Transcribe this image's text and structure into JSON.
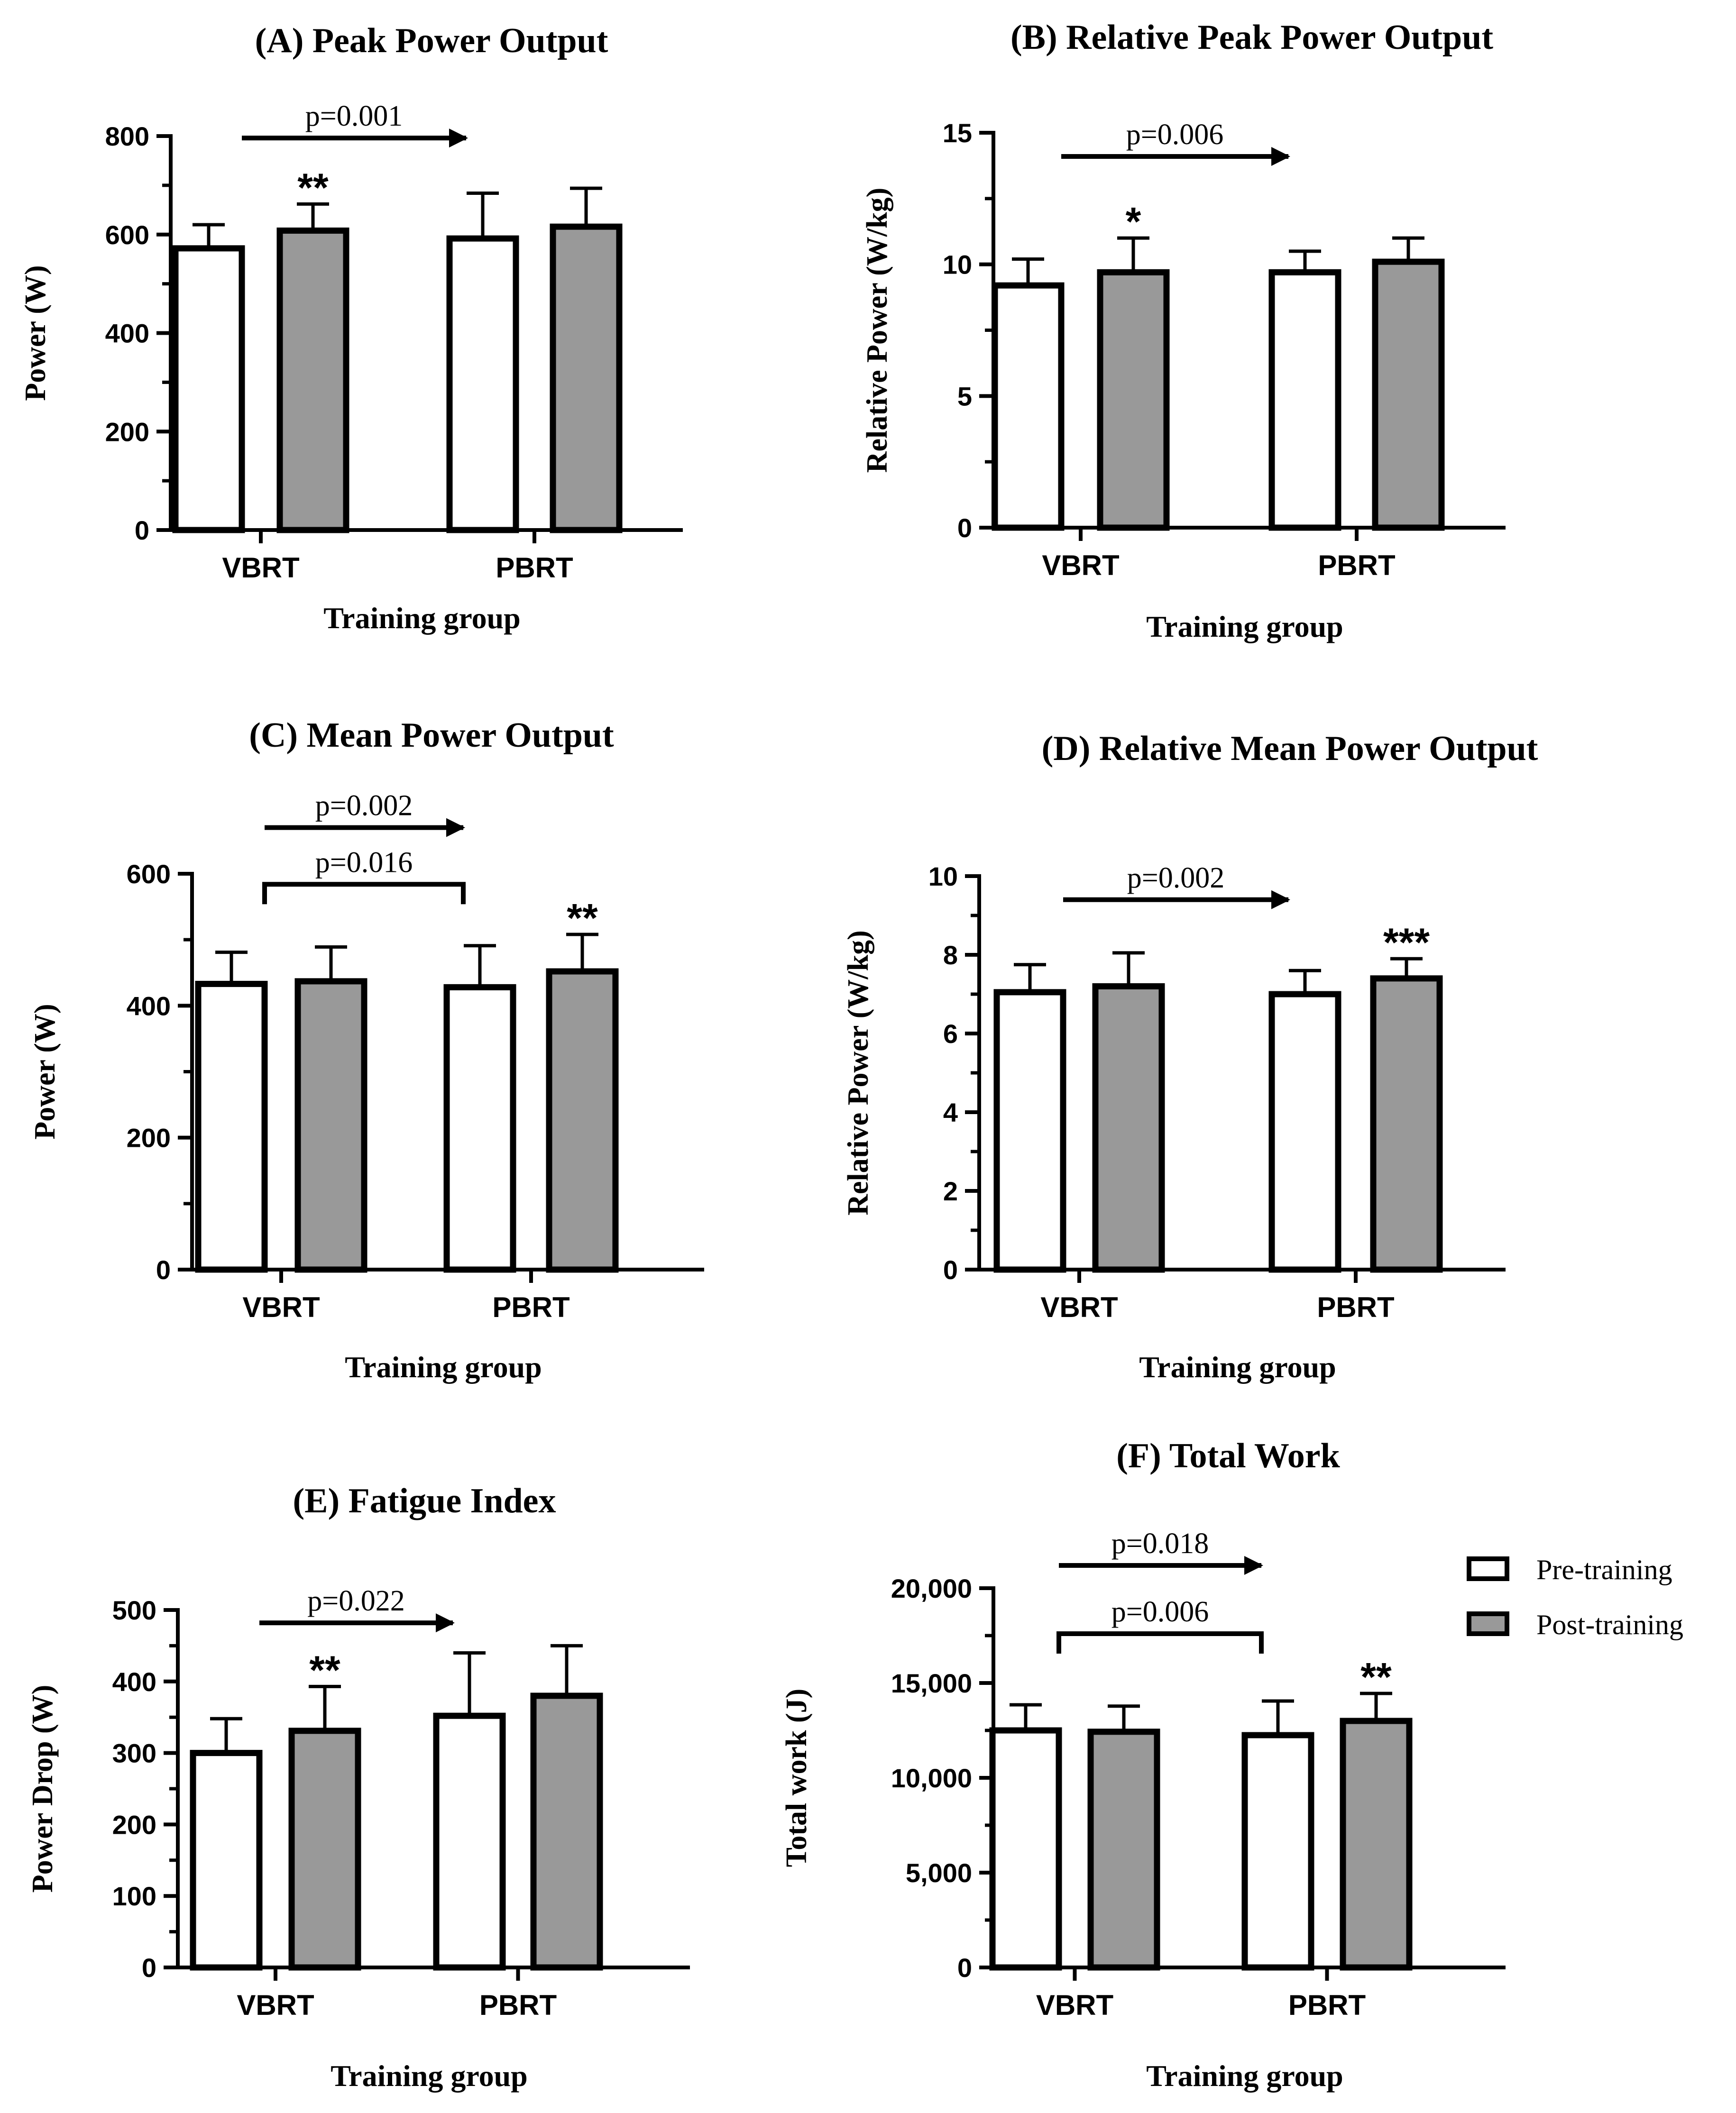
{
  "legend": [
    {
      "label": "Pre-training",
      "color": "#ffffff"
    },
    {
      "label": "Post-training",
      "color": "#999999"
    }
  ],
  "chart_data": [
    {
      "id": "A",
      "type": "bar",
      "title": "(A)  Peak Power Output",
      "xlabel": "Training group",
      "ylabel": "Power (W)",
      "categories": [
        "VBRT",
        "PBRT"
      ],
      "ylim": [
        0,
        800
      ],
      "yticks": [
        0,
        200,
        400,
        600,
        800
      ],
      "ytick_labels": [
        "0",
        "200",
        "400",
        "600",
        "800"
      ],
      "series": [
        {
          "name": "Pre-training",
          "values": [
            572,
            592
          ],
          "errors": [
            48,
            92
          ]
        },
        {
          "name": "Post-training",
          "values": [
            608,
            616
          ],
          "errors": [
            54,
            78
          ]
        }
      ],
      "significance": [
        {
          "text": "**",
          "category": 0,
          "series": 1
        }
      ],
      "comparisons": [
        {
          "type": "arrow",
          "label": "p=0.001",
          "y": 796
        }
      ]
    },
    {
      "id": "B",
      "type": "bar",
      "title": "(B)  Relative  Peak Power Output",
      "xlabel": "Training group",
      "ylabel": "Relative Power (W/kg)",
      "categories": [
        "VBRT",
        "PBRT"
      ],
      "ylim": [
        0,
        15
      ],
      "yticks": [
        0,
        5,
        10,
        15
      ],
      "ytick_labels": [
        "0",
        "5",
        "10",
        "15"
      ],
      "series": [
        {
          "name": "Pre-training",
          "values": [
            9.2,
            9.7
          ],
          "errors": [
            1.0,
            0.8
          ]
        },
        {
          "name": "Post-training",
          "values": [
            9.7,
            10.1
          ],
          "errors": [
            1.3,
            0.9
          ]
        }
      ],
      "significance": [
        {
          "text": "*",
          "category": 0,
          "series": 1
        }
      ],
      "comparisons": [
        {
          "type": "arrow",
          "label": "p=0.006",
          "y": 14.1
        }
      ]
    },
    {
      "id": "C",
      "type": "bar",
      "title": "(C)   Mean Power Output",
      "xlabel": "Training group",
      "ylabel": "Power (W)",
      "categories": [
        "VBRT",
        "PBRT"
      ],
      "ylim": [
        0,
        600
      ],
      "yticks": [
        0,
        200,
        400,
        600
      ],
      "ytick_labels": [
        "0",
        "200",
        "400",
        "600"
      ],
      "series": [
        {
          "name": "Pre-training",
          "values": [
            433,
            428
          ],
          "errors": [
            48,
            63
          ]
        },
        {
          "name": "Post-training",
          "values": [
            437,
            452
          ],
          "errors": [
            52,
            56
          ]
        }
      ],
      "significance": [
        {
          "text": "**",
          "category": 1,
          "series": 1
        }
      ],
      "comparisons": [
        {
          "type": "arrow",
          "label": "p=0.002",
          "y": 670
        },
        {
          "type": "bracket",
          "label": "p=0.016",
          "y": 584
        }
      ]
    },
    {
      "id": "D",
      "type": "bar",
      "title": "(D)  Relative Mean Power Output",
      "xlabel": "Training  group",
      "ylabel": "Relative Power  (W/kg)",
      "categories": [
        "VBRT",
        "PBRT"
      ],
      "ylim": [
        0,
        10
      ],
      "yticks": [
        0,
        2,
        4,
        6,
        8,
        10
      ],
      "ytick_labels": [
        "0",
        "2",
        "4",
        "6",
        "8",
        "10"
      ],
      "series": [
        {
          "name": "Pre-training",
          "values": [
            7.05,
            7.0
          ],
          "errors": [
            0.7,
            0.6
          ]
        },
        {
          "name": "Post-training",
          "values": [
            7.2,
            7.4
          ],
          "errors": [
            0.85,
            0.5
          ]
        }
      ],
      "significance": [
        {
          "text": "***",
          "category": 1,
          "series": 1
        }
      ],
      "comparisons": [
        {
          "type": "arrow",
          "label": "p=0.002",
          "y": 9.4
        }
      ]
    },
    {
      "id": "E",
      "type": "bar",
      "title": "(E)  Fatigue Index",
      "xlabel": "Training group",
      "ylabel": "Power Drop  (W)",
      "categories": [
        "VBRT",
        "PBRT"
      ],
      "ylim": [
        0,
        500
      ],
      "yticks": [
        0,
        100,
        200,
        300,
        400,
        500
      ],
      "ytick_labels": [
        "0",
        "100",
        "200",
        "300",
        "400",
        "500"
      ],
      "series": [
        {
          "name": "Pre-training",
          "values": [
            300,
            352
          ],
          "errors": [
            48,
            88
          ]
        },
        {
          "name": "Post-training",
          "values": [
            331,
            380
          ],
          "errors": [
            62,
            70
          ]
        }
      ],
      "significance": [
        {
          "text": "**",
          "category": 0,
          "series": 1
        }
      ],
      "comparisons": [
        {
          "type": "arrow",
          "label": "p=0.022",
          "y": 482
        }
      ]
    },
    {
      "id": "F",
      "type": "bar",
      "title": "(F)   Total Work",
      "xlabel": "Training group",
      "ylabel": "Total work  (J)",
      "categories": [
        "VBRT",
        "PBRT"
      ],
      "ylim": [
        0,
        20000
      ],
      "yticks": [
        0,
        5000,
        10000,
        15000,
        20000
      ],
      "ytick_labels": [
        "0",
        "5,000",
        "10,000",
        "15,000",
        "20,000"
      ],
      "series": [
        {
          "name": "Pre-training",
          "values": [
            12500,
            12250
          ],
          "errors": [
            1350,
            1800
          ]
        },
        {
          "name": "Post-training",
          "values": [
            12430,
            13000
          ],
          "errors": [
            1350,
            1450
          ]
        }
      ],
      "significance": [
        {
          "text": "**",
          "category": 1,
          "series": 1
        }
      ],
      "comparisons": [
        {
          "type": "arrow",
          "label": "p=0.018",
          "y": 21200
        },
        {
          "type": "bracket",
          "label": "p=0.006",
          "y": 17600
        }
      ]
    }
  ]
}
